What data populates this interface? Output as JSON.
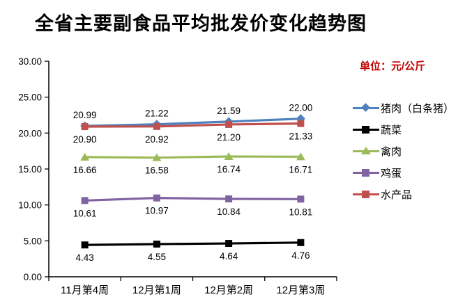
{
  "chart_data": {
    "type": "line",
    "title": "全省主要副食品平均批发价变化趋势图",
    "unit_label": "单位：元/公斤",
    "unit_label_color": "#c00000",
    "categories": [
      "11月第4周",
      "12月第1周",
      "12月第2周",
      "12月第3周"
    ],
    "series": [
      {
        "name": "猪肉（白条猪）",
        "color": "#4F81BD",
        "marker": "diamond",
        "label_position": "above",
        "values": [
          20.99,
          21.22,
          21.59,
          22.0
        ]
      },
      {
        "name": "蔬菜",
        "color": "#000000",
        "marker": "square",
        "label_position": "below",
        "values": [
          4.43,
          4.55,
          4.64,
          4.76
        ]
      },
      {
        "name": "禽肉",
        "color": "#9BBB59",
        "marker": "triangle",
        "label_position": "below",
        "values": [
          16.66,
          16.58,
          16.74,
          16.71
        ]
      },
      {
        "name": "鸡蛋",
        "color": "#8064A2",
        "marker": "square",
        "label_position": "below",
        "values": [
          10.61,
          10.97,
          10.84,
          10.81
        ]
      },
      {
        "name": "水产品",
        "color": "#C0504D",
        "marker": "square",
        "label_position": "below",
        "values": [
          20.9,
          20.92,
          21.2,
          21.33
        ]
      }
    ],
    "legend_order": [
      "猪肉（白条猪）",
      "蔬菜",
      "禽肉",
      "鸡蛋",
      "水产品"
    ],
    "y_axis": {
      "min": 0,
      "max": 30,
      "step": 5,
      "tick_labels": [
        "0.00",
        "5.00",
        "10.00",
        "15.00",
        "20.00",
        "25.00",
        "30.00"
      ]
    },
    "value_decimals": 2,
    "gridlines": false,
    "legend_position": "right",
    "axis_color": "#000000"
  }
}
